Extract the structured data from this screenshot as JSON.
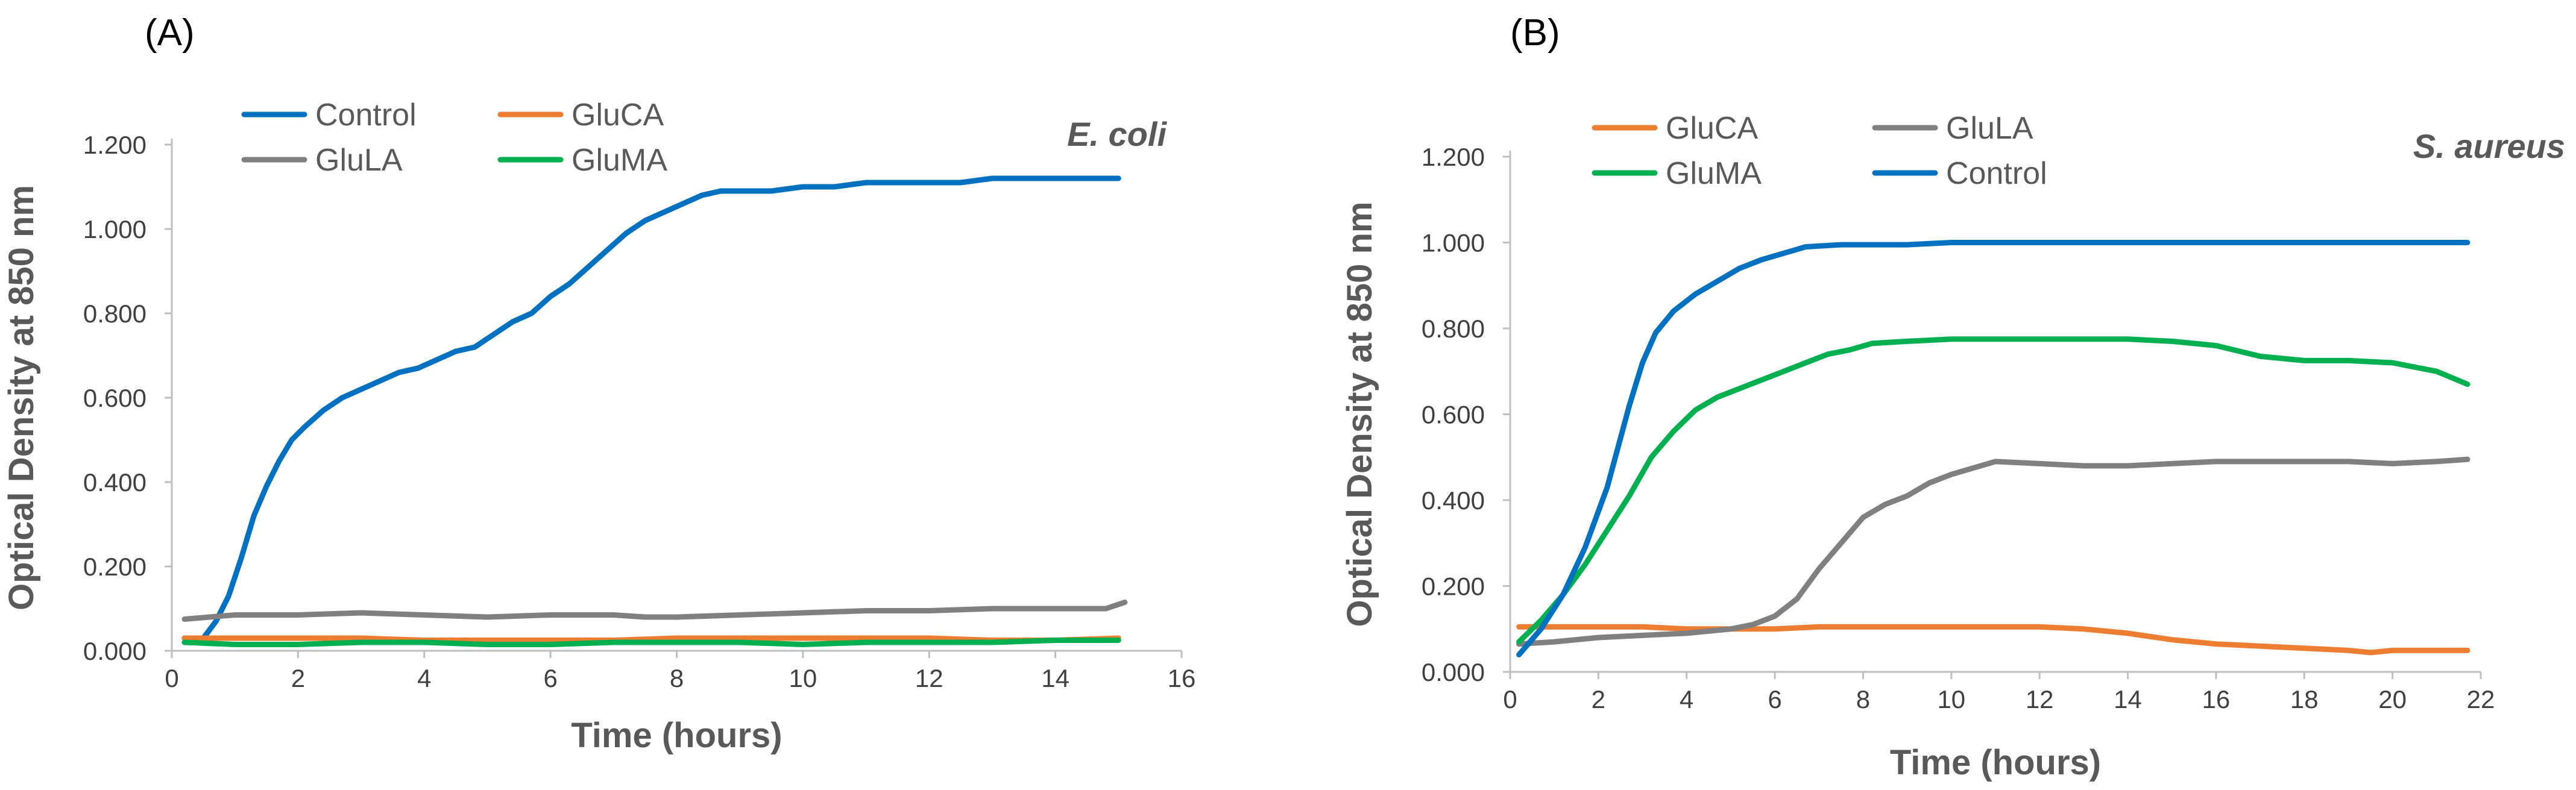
{
  "colors": {
    "Control": "#0070c0",
    "GluCA": "#ed7d31",
    "GluLA": "#808080",
    "GluMA": "#00b050"
  },
  "chart_data": [
    {
      "type": "line",
      "panel_label": "(A)",
      "organism": "E. coli",
      "xlabel": "Time (hours)",
      "ylabel": "Optical Density at 850 nm",
      "xlim": [
        0,
        16
      ],
      "ylim": [
        0,
        1.2
      ],
      "x_ticks": [
        "0",
        "2",
        "4",
        "6",
        "8",
        "10",
        "12",
        "14",
        "16"
      ],
      "y_ticks": [
        "0.000",
        "0.200",
        "0.400",
        "0.600",
        "0.800",
        "1.000",
        "1.200"
      ],
      "legend": [
        "Control",
        "GluCA",
        "GluLA",
        "GluMA"
      ],
      "series": [
        {
          "name": "Control",
          "x": [
            0.2,
            0.5,
            0.7,
            0.9,
            1.1,
            1.3,
            1.5,
            1.7,
            1.9,
            2.1,
            2.4,
            2.7,
            3.0,
            3.3,
            3.6,
            3.9,
            4.2,
            4.5,
            4.8,
            5.1,
            5.4,
            5.7,
            6.0,
            6.3,
            6.6,
            6.9,
            7.2,
            7.5,
            7.8,
            8.1,
            8.4,
            8.7,
            9.0,
            9.5,
            10.0,
            10.5,
            11.0,
            11.5,
            12.0,
            12.5,
            13.0,
            13.5,
            14.0,
            14.5,
            15.0
          ],
          "y": [
            0.03,
            0.03,
            0.07,
            0.13,
            0.22,
            0.32,
            0.39,
            0.45,
            0.5,
            0.53,
            0.57,
            0.6,
            0.62,
            0.64,
            0.66,
            0.67,
            0.69,
            0.71,
            0.72,
            0.75,
            0.78,
            0.8,
            0.84,
            0.87,
            0.91,
            0.95,
            0.99,
            1.02,
            1.04,
            1.06,
            1.08,
            1.09,
            1.09,
            1.09,
            1.1,
            1.1,
            1.11,
            1.11,
            1.11,
            1.11,
            1.12,
            1.12,
            1.12,
            1.12,
            1.12
          ]
        },
        {
          "name": "GluCA",
          "x": [
            0.2,
            1,
            2,
            3,
            4,
            5,
            6,
            7,
            8,
            9,
            10,
            11,
            12,
            13,
            14,
            15
          ],
          "y": [
            0.03,
            0.03,
            0.03,
            0.03,
            0.025,
            0.025,
            0.025,
            0.025,
            0.03,
            0.03,
            0.03,
            0.03,
            0.03,
            0.025,
            0.025,
            0.03
          ]
        },
        {
          "name": "GluLA",
          "x": [
            0.2,
            1,
            2,
            3,
            4,
            5,
            6,
            7,
            7.5,
            8,
            9,
            10,
            11,
            12,
            13,
            14,
            14.8,
            15.1
          ],
          "y": [
            0.075,
            0.085,
            0.085,
            0.09,
            0.085,
            0.08,
            0.085,
            0.085,
            0.08,
            0.08,
            0.085,
            0.09,
            0.095,
            0.095,
            0.1,
            0.1,
            0.1,
            0.115
          ]
        },
        {
          "name": "GluMA",
          "x": [
            0.2,
            1,
            2,
            3,
            4,
            5,
            6,
            7,
            8,
            9,
            10,
            11,
            12,
            13,
            14,
            15
          ],
          "y": [
            0.02,
            0.015,
            0.015,
            0.02,
            0.02,
            0.015,
            0.015,
            0.02,
            0.02,
            0.02,
            0.015,
            0.02,
            0.02,
            0.02,
            0.025,
            0.025
          ]
        }
      ]
    },
    {
      "type": "line",
      "panel_label": "(B)",
      "organism": "S. aureus",
      "xlabel": "Time (hours)",
      "ylabel": "Optical Density at 850 nm",
      "xlim": [
        0,
        22
      ],
      "ylim": [
        0,
        1.2
      ],
      "x_ticks": [
        "0",
        "2",
        "4",
        "6",
        "8",
        "10",
        "12",
        "14",
        "16",
        "18",
        "20",
        "22"
      ],
      "y_ticks": [
        "0.000",
        "0.200",
        "0.400",
        "0.600",
        "0.800",
        "1.000",
        "1.200"
      ],
      "legend": [
        "GluCA",
        "GluLA",
        "GluMA",
        "Control"
      ],
      "series": [
        {
          "name": "GluCA",
          "x": [
            0.2,
            1,
            2,
            3,
            4,
            5,
            6,
            7,
            8,
            9,
            10,
            11,
            12,
            13,
            14,
            15,
            16,
            17,
            18,
            19,
            19.5,
            20,
            21,
            21.7
          ],
          "y": [
            0.105,
            0.105,
            0.105,
            0.105,
            0.1,
            0.1,
            0.1,
            0.105,
            0.105,
            0.105,
            0.105,
            0.105,
            0.105,
            0.1,
            0.09,
            0.075,
            0.065,
            0.06,
            0.055,
            0.05,
            0.045,
            0.05,
            0.05,
            0.05
          ]
        },
        {
          "name": "GluLA",
          "x": [
            0.2,
            1,
            2,
            3,
            4,
            5,
            5.5,
            6,
            6.5,
            7,
            7.5,
            8,
            8.5,
            9,
            9.5,
            10,
            10.5,
            11,
            12,
            13,
            14,
            15,
            16,
            17,
            18,
            19,
            20,
            21,
            21.7
          ],
          "y": [
            0.065,
            0.07,
            0.08,
            0.085,
            0.09,
            0.1,
            0.11,
            0.13,
            0.17,
            0.24,
            0.3,
            0.36,
            0.39,
            0.41,
            0.44,
            0.46,
            0.475,
            0.49,
            0.485,
            0.48,
            0.48,
            0.485,
            0.49,
            0.49,
            0.49,
            0.49,
            0.485,
            0.49,
            0.495
          ]
        },
        {
          "name": "GluMA",
          "x": [
            0.2,
            0.7,
            1.2,
            1.7,
            2.2,
            2.7,
            3.2,
            3.7,
            4.2,
            4.7,
            5.2,
            5.7,
            6.2,
            6.7,
            7.2,
            7.7,
            8.2,
            9,
            10,
            11,
            12,
            13,
            14,
            15,
            16,
            17,
            18,
            19,
            20,
            21,
            21.7
          ],
          "y": [
            0.07,
            0.12,
            0.18,
            0.25,
            0.33,
            0.41,
            0.5,
            0.56,
            0.61,
            0.64,
            0.66,
            0.68,
            0.7,
            0.72,
            0.74,
            0.75,
            0.765,
            0.77,
            0.775,
            0.775,
            0.775,
            0.775,
            0.775,
            0.77,
            0.76,
            0.735,
            0.725,
            0.725,
            0.72,
            0.7,
            0.67
          ]
        },
        {
          "name": "Control",
          "x": [
            0.2,
            0.7,
            1.2,
            1.7,
            2.2,
            2.7,
            3.0,
            3.3,
            3.7,
            4.2,
            4.7,
            5.2,
            5.7,
            6.2,
            6.7,
            7.5,
            8,
            9,
            10,
            11,
            12,
            13,
            14,
            15,
            16,
            17,
            18,
            19,
            20,
            21,
            21.7
          ],
          "y": [
            0.04,
            0.1,
            0.18,
            0.29,
            0.43,
            0.62,
            0.72,
            0.79,
            0.84,
            0.88,
            0.91,
            0.94,
            0.96,
            0.975,
            0.99,
            0.995,
            0.995,
            0.995,
            1.0,
            1.0,
            1.0,
            1.0,
            1.0,
            1.0,
            1.0,
            1.0,
            1.0,
            1.0,
            1.0,
            1.0,
            1.0
          ]
        }
      ]
    }
  ]
}
